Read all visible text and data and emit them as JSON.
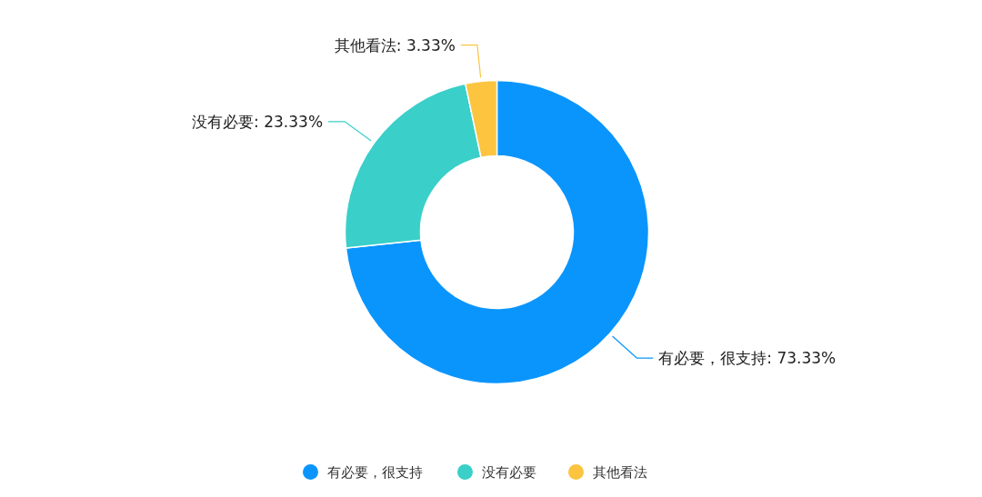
{
  "chart_data": {
    "type": "donut",
    "categories": [
      "有必要，很支持",
      "没有必要",
      "其他看法"
    ],
    "values": [
      73.33,
      23.33,
      3.33
    ],
    "colors": [
      "#0a95fd",
      "#3acfc9",
      "#fcc43f"
    ],
    "value_labels": [
      "有必要，很支持: 73.33%",
      "没有必要: 23.33%",
      "其他看法: 3.33%"
    ],
    "legend": "bottom"
  }
}
